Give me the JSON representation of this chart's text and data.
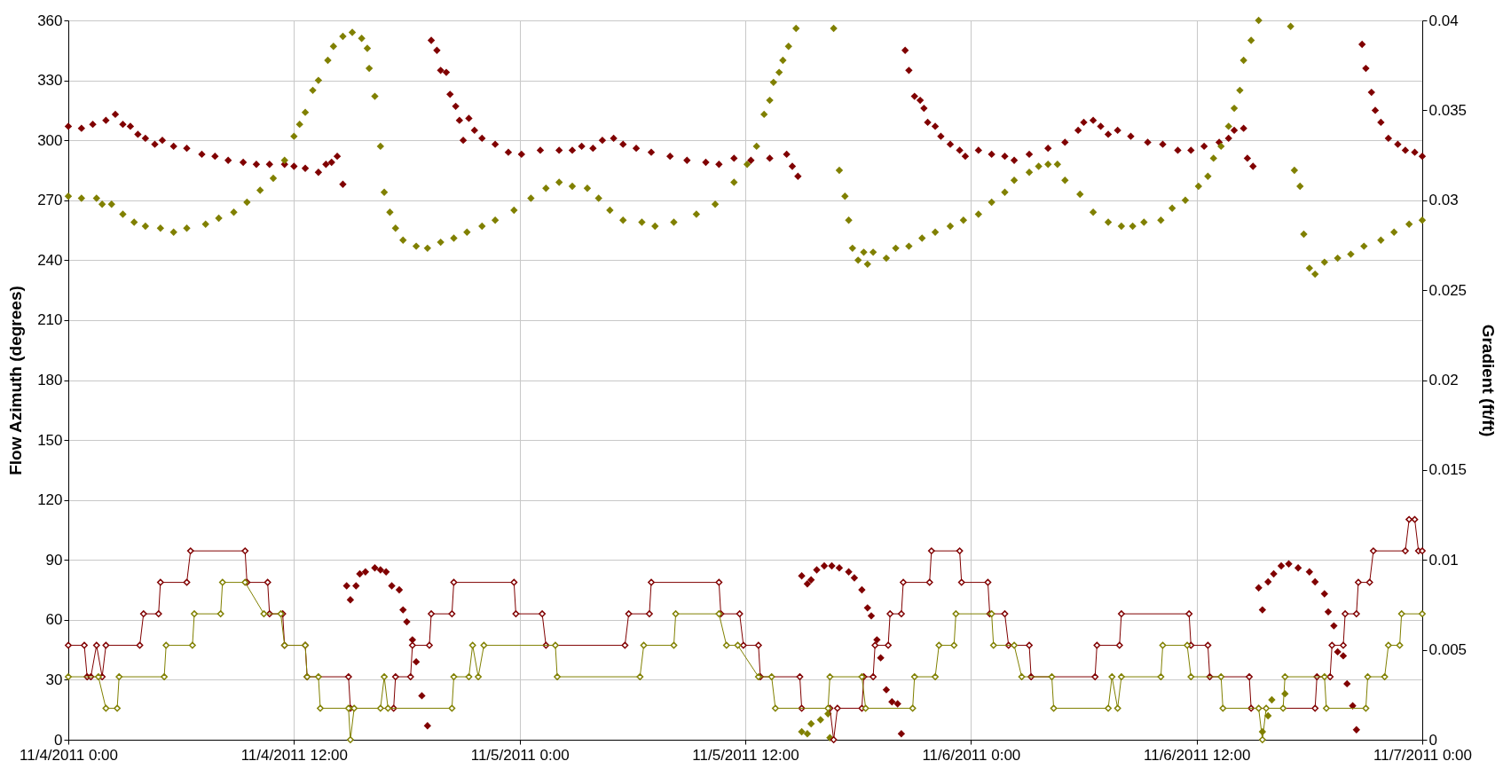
{
  "chart_data": {
    "type": "scatter",
    "ylabel": "Flow Azimuth (degrees)",
    "y2label": "Gradient (ft/ft)",
    "xlim": [
      "2011-11-04T00:00",
      "2011-11-07T00:00"
    ],
    "xticks": [
      {
        "value": "2011-11-04T00:00",
        "label": "11/4/2011 0:00"
      },
      {
        "value": "2011-11-04T12:00",
        "label": "11/4/2011 12:00"
      },
      {
        "value": "2011-11-05T00:00",
        "label": "11/5/2011 0:00"
      },
      {
        "value": "2011-11-05T12:00",
        "label": "11/5/2011 12:00"
      },
      {
        "value": "2011-11-06T00:00",
        "label": "11/6/2011 0:00"
      },
      {
        "value": "2011-11-06T12:00",
        "label": "11/6/2011 12:00"
      },
      {
        "value": "2011-11-07T00:00",
        "label": "11/7/2011 0:00"
      }
    ],
    "ylim": [
      0,
      360
    ],
    "yticks": [
      0,
      30,
      60,
      90,
      120,
      150,
      180,
      210,
      240,
      270,
      300,
      330,
      360
    ],
    "y2lim": [
      0,
      0.04
    ],
    "y2ticks": [
      0,
      0.005,
      0.01,
      0.015,
      0.02,
      0.025,
      0.03,
      0.035,
      0.04
    ],
    "grid": true,
    "marker": "diamond",
    "series": [
      {
        "color": "#800000",
        "x": [
          "2011-11-04T00:00",
          "2011-11-04T00:42",
          "2011-11-04T01:18",
          "2011-11-04T02:00",
          "2011-11-04T02:30",
          "2011-11-04T02:54",
          "2011-11-04T03:18",
          "2011-11-04T03:42",
          "2011-11-04T04:06",
          "2011-11-04T04:36",
          "2011-11-04T05:00",
          "2011-11-04T05:36",
          "2011-11-04T06:18",
          "2011-11-04T07:06",
          "2011-11-04T07:48",
          "2011-11-04T08:30",
          "2011-11-04T09:18",
          "2011-11-04T10:00",
          "2011-11-04T10:42",
          "2011-11-04T11:30",
          "2011-11-04T12:00",
          "2011-11-04T12:36",
          "2011-11-04T13:18",
          "2011-11-04T13:42",
          "2011-11-04T14:00",
          "2011-11-04T14:18",
          "2011-11-04T14:36",
          "2011-11-04T14:48",
          "2011-11-04T15:00",
          "2011-11-04T15:18",
          "2011-11-04T15:30",
          "2011-11-04T15:48",
          "2011-11-04T16:18",
          "2011-11-04T16:36",
          "2011-11-04T16:54",
          "2011-11-04T17:12",
          "2011-11-04T17:36",
          "2011-11-04T17:48",
          "2011-11-04T18:00",
          "2011-11-04T18:18",
          "2011-11-04T18:30",
          "2011-11-04T18:48",
          "2011-11-04T19:06",
          "2011-11-04T19:18",
          "2011-11-04T19:36",
          "2011-11-04T19:48",
          "2011-11-04T20:06",
          "2011-11-04T20:18",
          "2011-11-04T20:36",
          "2011-11-04T20:48",
          "2011-11-04T21:00",
          "2011-11-04T21:18",
          "2011-11-04T21:36",
          "2011-11-04T22:00",
          "2011-11-04T22:42",
          "2011-11-04T23:24",
          "2011-11-05T00:06",
          "2011-11-05T01:06",
          "2011-11-05T02:06",
          "2011-11-05T02:48",
          "2011-11-05T03:18",
          "2011-11-05T03:54",
          "2011-11-05T04:24",
          "2011-11-05T05:00",
          "2011-11-05T05:30",
          "2011-11-05T06:12",
          "2011-11-05T07:00",
          "2011-11-05T08:00",
          "2011-11-05T08:54",
          "2011-11-05T09:54",
          "2011-11-05T10:36",
          "2011-11-05T11:24",
          "2011-11-05T12:18",
          "2011-11-05T13:18",
          "2011-11-05T14:12",
          "2011-11-05T14:30",
          "2011-11-05T14:48",
          "2011-11-05T15:00",
          "2011-11-05T15:18",
          "2011-11-05T15:30",
          "2011-11-05T15:48",
          "2011-11-05T16:12",
          "2011-11-05T16:36",
          "2011-11-05T17:00",
          "2011-11-05T17:30",
          "2011-11-05T17:48",
          "2011-11-05T18:12",
          "2011-11-05T18:30",
          "2011-11-05T18:42",
          "2011-11-05T19:00",
          "2011-11-05T19:12",
          "2011-11-05T19:30",
          "2011-11-05T19:48",
          "2011-11-05T20:06",
          "2011-11-05T20:18",
          "2011-11-05T20:30",
          "2011-11-05T20:42",
          "2011-11-05T21:00",
          "2011-11-05T21:18",
          "2011-11-05T21:30",
          "2011-11-05T21:42",
          "2011-11-05T22:06",
          "2011-11-05T22:24",
          "2011-11-05T22:54",
          "2011-11-05T23:24",
          "2011-11-05T23:42",
          "2011-11-06T00:24",
          "2011-11-06T01:06",
          "2011-11-06T01:48",
          "2011-11-06T02:18",
          "2011-11-06T03:06",
          "2011-11-06T04:06",
          "2011-11-06T05:00",
          "2011-11-06T05:42",
          "2011-11-06T06:00",
          "2011-11-06T06:30",
          "2011-11-06T06:54",
          "2011-11-06T07:18",
          "2011-11-06T07:48",
          "2011-11-06T08:30",
          "2011-11-06T09:24",
          "2011-11-06T10:12",
          "2011-11-06T11:00",
          "2011-11-06T11:42",
          "2011-11-06T12:24",
          "2011-11-06T13:12",
          "2011-11-06T13:42",
          "2011-11-06T14:00",
          "2011-11-06T14:30",
          "2011-11-06T14:42",
          "2011-11-06T15:00",
          "2011-11-06T15:18",
          "2011-11-06T15:30",
          "2011-11-06T15:48",
          "2011-11-06T16:06",
          "2011-11-06T16:30",
          "2011-11-06T16:54",
          "2011-11-06T17:24",
          "2011-11-06T18:00",
          "2011-11-06T18:18",
          "2011-11-06T18:48",
          "2011-11-06T19:00",
          "2011-11-06T19:18",
          "2011-11-06T19:30",
          "2011-11-06T19:48",
          "2011-11-06T20:00",
          "2011-11-06T20:18",
          "2011-11-06T20:30",
          "2011-11-06T20:48",
          "2011-11-06T21:00",
          "2011-11-06T21:18",
          "2011-11-06T21:30",
          "2011-11-06T21:48",
          "2011-11-06T22:12",
          "2011-11-06T22:42",
          "2011-11-06T23:06",
          "2011-11-06T23:36",
          "2011-11-07T00:00"
        ],
        "values": [
          307,
          306,
          308,
          310,
          313,
          308,
          307,
          303,
          301,
          298,
          300,
          297,
          296,
          293,
          292,
          290,
          289,
          288,
          288,
          288,
          287,
          286,
          284,
          288,
          289,
          292,
          278,
          77,
          70,
          77,
          83,
          84,
          86,
          85,
          84,
          77,
          75,
          65,
          59,
          50,
          39,
          22,
          7,
          350,
          345,
          335,
          334,
          323,
          317,
          310,
          300,
          311,
          305,
          301,
          298,
          294,
          293,
          295,
          295,
          295,
          297,
          296,
          300,
          301,
          298,
          296,
          294,
          292,
          290,
          289,
          288,
          291,
          290,
          291,
          293,
          287,
          282,
          82,
          78,
          80,
          85,
          87,
          87,
          86,
          84,
          81,
          75,
          66,
          62,
          50,
          41,
          25,
          19,
          18,
          3,
          345,
          335,
          322,
          320,
          316,
          309,
          307,
          302,
          298,
          295,
          292,
          295,
          293,
          292,
          290,
          293,
          296,
          299,
          305,
          309,
          310,
          307,
          303,
          305,
          302,
          299,
          298,
          295,
          295,
          297,
          299,
          301,
          305,
          306,
          291,
          287,
          76,
          65,
          79,
          83,
          87,
          88,
          86,
          84,
          79,
          73,
          64,
          57,
          44,
          42,
          28,
          17,
          5,
          348,
          336,
          324,
          315,
          309,
          301,
          298,
          295,
          294,
          292
        ]
      },
      {
        "color": "#808000",
        "x": [
          "2011-11-04T00:00",
          "2011-11-04T00:42",
          "2011-11-04T01:30",
          "2011-11-04T01:48",
          "2011-11-04T02:18",
          "2011-11-04T02:54",
          "2011-11-04T03:30",
          "2011-11-04T04:06",
          "2011-11-04T04:54",
          "2011-11-04T05:36",
          "2011-11-04T06:18",
          "2011-11-04T07:18",
          "2011-11-04T08:00",
          "2011-11-04T08:48",
          "2011-11-04T09:30",
          "2011-11-04T10:12",
          "2011-11-04T10:54",
          "2011-11-04T11:30",
          "2011-11-04T12:00",
          "2011-11-04T12:18",
          "2011-11-04T12:36",
          "2011-11-04T13:00",
          "2011-11-04T13:18",
          "2011-11-04T13:48",
          "2011-11-04T14:06",
          "2011-11-04T14:36",
          "2011-11-04T15:06",
          "2011-11-04T15:36",
          "2011-11-04T15:54",
          "2011-11-04T16:00",
          "2011-11-04T16:18",
          "2011-11-04T16:36",
          "2011-11-04T16:48",
          "2011-11-04T17:06",
          "2011-11-04T17:24",
          "2011-11-04T17:48",
          "2011-11-04T18:30",
          "2011-11-04T19:06",
          "2011-11-04T19:48",
          "2011-11-04T20:30",
          "2011-11-04T21:12",
          "2011-11-04T22:00",
          "2011-11-04T22:42",
          "2011-11-04T23:42",
          "2011-11-05T00:36",
          "2011-11-05T01:24",
          "2011-11-05T02:06",
          "2011-11-05T02:48",
          "2011-11-05T03:36",
          "2011-11-05T04:12",
          "2011-11-05T04:48",
          "2011-11-05T05:30",
          "2011-11-05T06:30",
          "2011-11-05T07:12",
          "2011-11-05T08:12",
          "2011-11-05T09:24",
          "2011-11-05T10:24",
          "2011-11-05T11:24",
          "2011-11-05T12:06",
          "2011-11-05T12:36",
          "2011-11-05T13:00",
          "2011-11-05T13:18",
          "2011-11-05T13:30",
          "2011-11-05T13:48",
          "2011-11-05T14:00",
          "2011-11-05T14:18",
          "2011-11-05T14:42",
          "2011-11-05T15:00",
          "2011-11-05T15:18",
          "2011-11-05T15:30",
          "2011-11-05T16:00",
          "2011-11-05T16:24",
          "2011-11-05T16:30",
          "2011-11-05T16:42",
          "2011-11-05T17:00",
          "2011-11-05T17:18",
          "2011-11-05T17:30",
          "2011-11-05T17:42",
          "2011-11-05T18:00",
          "2011-11-05T18:18",
          "2011-11-05T18:30",
          "2011-11-05T18:48",
          "2011-11-05T19:30",
          "2011-11-05T20:00",
          "2011-11-05T20:42",
          "2011-11-05T21:24",
          "2011-11-05T22:06",
          "2011-11-05T22:54",
          "2011-11-05T23:36",
          "2011-11-06T00:24",
          "2011-11-06T01:06",
          "2011-11-06T01:48",
          "2011-11-06T02:18",
          "2011-11-06T03:06",
          "2011-11-06T03:36",
          "2011-11-06T04:06",
          "2011-11-06T04:36",
          "2011-11-06T05:00",
          "2011-11-06T05:48",
          "2011-11-06T06:30",
          "2011-11-06T07:18",
          "2011-11-06T08:00",
          "2011-11-06T08:36",
          "2011-11-06T09:12",
          "2011-11-06T10:06",
          "2011-11-06T10:42",
          "2011-11-06T11:24",
          "2011-11-06T12:06",
          "2011-11-06T12:36",
          "2011-11-06T12:54",
          "2011-11-06T13:18",
          "2011-11-06T13:42",
          "2011-11-06T14:00",
          "2011-11-06T14:18",
          "2011-11-06T14:30",
          "2011-11-06T14:54",
          "2011-11-06T15:18",
          "2011-11-06T15:30",
          "2011-11-06T15:48",
          "2011-11-06T16:00",
          "2011-11-06T16:42",
          "2011-11-06T17:00",
          "2011-11-06T17:12",
          "2011-11-06T17:30",
          "2011-11-06T17:42",
          "2011-11-06T18:00",
          "2011-11-06T18:18",
          "2011-11-06T18:48",
          "2011-11-06T19:30",
          "2011-11-06T20:12",
          "2011-11-06T20:54",
          "2011-11-06T21:48",
          "2011-11-06T22:30",
          "2011-11-06T23:18",
          "2011-11-07T00:00"
        ],
        "values": [
          272,
          271,
          271,
          268,
          268,
          263,
          259,
          257,
          256,
          254,
          256,
          258,
          261,
          264,
          269,
          275,
          281,
          290,
          302,
          308,
          314,
          325,
          330,
          340,
          347,
          352,
          354,
          351,
          346,
          336,
          322,
          297,
          274,
          264,
          256,
          250,
          247,
          246,
          249,
          251,
          254,
          257,
          260,
          265,
          271,
          276,
          279,
          277,
          276,
          271,
          265,
          260,
          259,
          257,
          259,
          263,
          268,
          279,
          288,
          297,
          313,
          320,
          329,
          334,
          340,
          347,
          356,
          4,
          3,
          8,
          10,
          13,
          1,
          356,
          285,
          272,
          260,
          246,
          240,
          244,
          238,
          244,
          241,
          246,
          247,
          251,
          254,
          257,
          260,
          263,
          269,
          274,
          280,
          284,
          287,
          288,
          288,
          280,
          273,
          264,
          259,
          257,
          257,
          259,
          260,
          266,
          270,
          277,
          282,
          291,
          297,
          307,
          316,
          325,
          340,
          350,
          360,
          4,
          12,
          20,
          23,
          357,
          285,
          277,
          253,
          236,
          233,
          239,
          241,
          243,
          247,
          250,
          254,
          258,
          260
        ]
      },
      {
        "type": "line",
        "axis": "y2",
        "color": "#800000",
        "x": [
          "2011-11-04T00:00",
          "2011-11-04T00:51",
          "2011-11-04T01:00",
          "2011-11-04T01:12",
          "2011-11-04T01:30",
          "2011-11-04T01:48",
          "2011-11-04T02:00",
          "2011-11-04T03:48",
          "2011-11-04T04:00",
          "2011-11-04T04:48",
          "2011-11-04T04:54",
          "2011-11-04T06:18",
          "2011-11-04T06:30",
          "2011-11-04T09:24",
          "2011-11-04T09:30",
          "2011-11-04T10:36",
          "2011-11-04T10:42",
          "2011-11-04T11:24",
          "2011-11-04T11:30",
          "2011-11-04T12:36",
          "2011-11-04T12:42",
          "2011-11-04T14:54",
          "2011-11-04T15:00",
          "2011-11-04T17:18",
          "2011-11-04T17:24",
          "2011-11-04T18:12",
          "2011-11-04T18:18",
          "2011-11-04T19:12",
          "2011-11-04T19:18",
          "2011-11-04T20:24",
          "2011-11-04T20:30",
          "2011-11-04T23:42",
          "2011-11-04T23:48",
          "2011-11-05T01:12",
          "2011-11-05T01:24",
          "2011-11-05T05:36",
          "2011-11-05T05:48",
          "2011-11-05T06:54",
          "2011-11-05T07:00",
          "2011-11-05T10:36",
          "2011-11-05T10:42",
          "2011-11-05T11:42",
          "2011-11-05T11:54",
          "2011-11-05T12:42",
          "2011-11-05T12:48",
          "2011-11-05T14:54",
          "2011-11-05T15:00",
          "2011-11-05T16:30",
          "2011-11-05T16:42",
          "2011-11-05T16:54",
          "2011-11-05T18:12",
          "2011-11-05T18:18",
          "2011-11-05T18:48",
          "2011-11-05T18:54",
          "2011-11-05T19:36",
          "2011-11-05T19:42",
          "2011-11-05T20:18",
          "2011-11-05T20:24",
          "2011-11-05T21:48",
          "2011-11-05T21:54",
          "2011-11-05T23:24",
          "2011-11-05T23:30",
          "2011-11-06T00:54",
          "2011-11-06T01:00",
          "2011-11-06T01:48",
          "2011-11-06T02:00",
          "2011-11-06T03:06",
          "2011-11-06T03:12",
          "2011-11-06T06:36",
          "2011-11-06T06:42",
          "2011-11-06T07:54",
          "2011-11-06T08:00",
          "2011-11-06T11:36",
          "2011-11-06T11:42",
          "2011-11-06T12:36",
          "2011-11-06T12:42",
          "2011-11-06T14:48",
          "2011-11-06T14:54",
          "2011-11-06T18:18",
          "2011-11-06T18:24",
          "2011-11-06T19:06",
          "2011-11-06T19:12",
          "2011-11-06T19:48",
          "2011-11-06T19:54",
          "2011-11-06T20:30",
          "2011-11-06T20:36",
          "2011-11-06T21:12",
          "2011-11-06T21:24",
          "2011-11-06T23:06",
          "2011-11-06T23:18",
          "2011-11-06T23:36",
          "2011-11-06T23:48",
          "2011-11-07T00:00"
        ],
        "values": [
          0.00525,
          0.00525,
          0.0035,
          0.0035,
          0.00525,
          0.0035,
          0.00525,
          0.00525,
          0.007,
          0.007,
          0.00875,
          0.00875,
          0.0105,
          0.0105,
          0.00875,
          0.00875,
          0.007,
          0.007,
          0.00525,
          0.00525,
          0.0035,
          0.0035,
          0.00175,
          0.00175,
          0.0035,
          0.0035,
          0.00525,
          0.00525,
          0.007,
          0.007,
          0.00875,
          0.00875,
          0.007,
          0.007,
          0.00525,
          0.00525,
          0.007,
          0.007,
          0.00875,
          0.00875,
          0.007,
          0.007,
          0.00525,
          0.00525,
          0.0035,
          0.0035,
          0.00175,
          0.00175,
          0,
          0.00175,
          0.00175,
          0.0035,
          0.0035,
          0.00525,
          0.00525,
          0.007,
          0.007,
          0.00875,
          0.00875,
          0.0105,
          0.0105,
          0.00875,
          0.00875,
          0.007,
          0.007,
          0.00525,
          0.00525,
          0.0035,
          0.0035,
          0.00525,
          0.00525,
          0.007,
          0.007,
          0.00525,
          0.00525,
          0.0035,
          0.0035,
          0.00175,
          0.00175,
          0.0035,
          0.0035,
          0.00525,
          0.00525,
          0.007,
          0.007,
          0.00875,
          0.00875,
          0.0105,
          0.0105,
          0.01225,
          0.01225,
          0.0105,
          0.0105
        ]
      },
      {
        "type": "line",
        "axis": "y2",
        "color": "#808000",
        "x": [
          "2011-11-04T00:00",
          "2011-11-04T01:36",
          "2011-11-04T02:00",
          "2011-11-04T02:36",
          "2011-11-04T02:42",
          "2011-11-04T05:06",
          "2011-11-04T05:12",
          "2011-11-04T06:36",
          "2011-11-04T06:42",
          "2011-11-04T08:06",
          "2011-11-04T08:12",
          "2011-11-04T09:24",
          "2011-11-04T10:24",
          "2011-11-04T11:18",
          "2011-11-04T11:30",
          "2011-11-04T12:36",
          "2011-11-04T12:42",
          "2011-11-04T13:18",
          "2011-11-04T13:24",
          "2011-11-04T14:54",
          "2011-11-04T15:00",
          "2011-11-04T15:12",
          "2011-11-04T16:36",
          "2011-11-04T16:48",
          "2011-11-04T17:00",
          "2011-11-04T20:24",
          "2011-11-04T20:30",
          "2011-11-04T21:18",
          "2011-11-04T21:30",
          "2011-11-04T21:48",
          "2011-11-04T22:06",
          "2011-11-05T01:54",
          "2011-11-05T02:00",
          "2011-11-05T06:24",
          "2011-11-05T06:36",
          "2011-11-05T08:12",
          "2011-11-05T08:18",
          "2011-11-05T10:36",
          "2011-11-05T11:00",
          "2011-11-05T11:36",
          "2011-11-05T12:42",
          "2011-11-05T13:24",
          "2011-11-05T13:36",
          "2011-11-05T16:24",
          "2011-11-05T16:30",
          "2011-11-05T18:12",
          "2011-11-05T18:24",
          "2011-11-05T20:54",
          "2011-11-05T21:00",
          "2011-11-05T22:06",
          "2011-11-05T22:18",
          "2011-11-05T23:06",
          "2011-11-05T23:12",
          "2011-11-06T01:06",
          "2011-11-06T01:12",
          "2011-11-06T02:18",
          "2011-11-06T02:42",
          "2011-11-06T04:18",
          "2011-11-06T04:24",
          "2011-11-06T07:18",
          "2011-11-06T07:30",
          "2011-11-06T07:48",
          "2011-11-06T08:00",
          "2011-11-06T10:06",
          "2011-11-06T10:12",
          "2011-11-06T11:30",
          "2011-11-06T11:42",
          "2011-11-06T13:18",
          "2011-11-06T13:24",
          "2011-11-06T15:18",
          "2011-11-06T15:30",
          "2011-11-06T15:42",
          "2011-11-06T16:36",
          "2011-11-06T16:42",
          "2011-11-06T18:48",
          "2011-11-06T18:54",
          "2011-11-06T21:00",
          "2011-11-06T21:06",
          "2011-11-06T22:00",
          "2011-11-06T22:12",
          "2011-11-06T22:48",
          "2011-11-06T22:54",
          "2011-11-07T00:00"
        ],
        "values": [
          0.0035,
          0.0035,
          0.00175,
          0.00175,
          0.0035,
          0.0035,
          0.00525,
          0.00525,
          0.007,
          0.007,
          0.00875,
          0.00875,
          0.007,
          0.007,
          0.00525,
          0.00525,
          0.0035,
          0.0035,
          0.00175,
          0.00175,
          0,
          0.00175,
          0.00175,
          0.0035,
          0.00175,
          0.00175,
          0.0035,
          0.0035,
          0.00525,
          0.0035,
          0.00525,
          0.00525,
          0.0035,
          0.0035,
          0.00525,
          0.00525,
          0.007,
          0.007,
          0.00525,
          0.00525,
          0.0035,
          0.0035,
          0.00175,
          0.00175,
          0.0035,
          0.0035,
          0.00175,
          0.00175,
          0.0035,
          0.0035,
          0.00525,
          0.00525,
          0.007,
          0.007,
          0.00525,
          0.00525,
          0.0035,
          0.0035,
          0.00175,
          0.00175,
          0.0035,
          0.00175,
          0.0035,
          0.0035,
          0.00525,
          0.00525,
          0.0035,
          0.0035,
          0.00175,
          0.00175,
          0,
          0.00175,
          0.00175,
          0.0035,
          0.0035,
          0.00175,
          0.00175,
          0.0035,
          0.0035,
          0.00525,
          0.00525,
          0.007,
          0.007
        ]
      }
    ]
  }
}
